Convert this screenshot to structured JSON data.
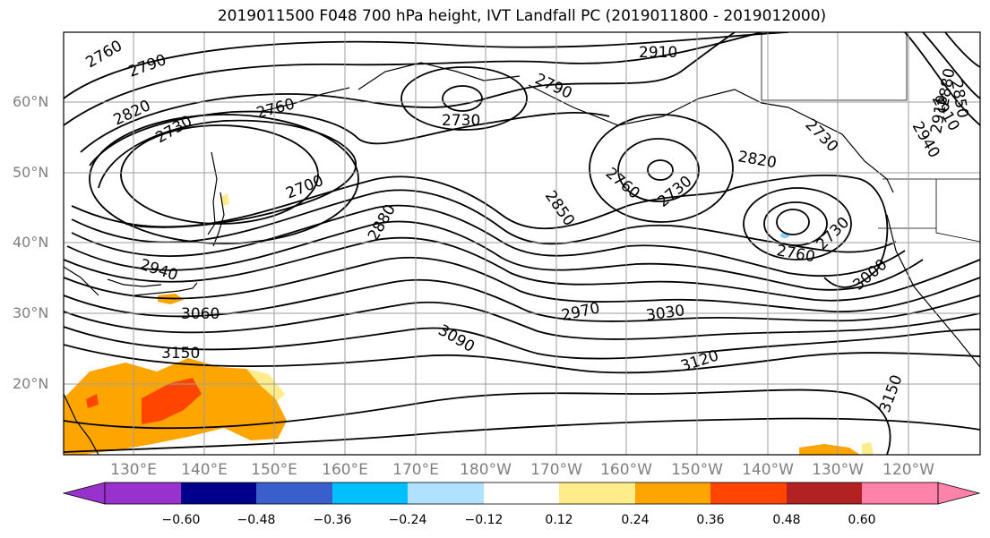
{
  "title": "2019011500 F048 700 hPa height, IVT Landfall PC (2019011800 - 2019012000)",
  "axes": {
    "lat_ticks": [
      "60°N",
      "50°N",
      "40°N",
      "30°N",
      "20°N"
    ],
    "lon_ticks": [
      "130°E",
      "140°E",
      "150°E",
      "160°E",
      "170°E",
      "180°W",
      "170°W",
      "160°W",
      "150°W",
      "140°W",
      "130°W",
      "120°W"
    ],
    "grid": true
  },
  "contours": {
    "variable": "700 hPa height",
    "labels": [
      "2760",
      "2790",
      "2820",
      "2730",
      "2700",
      "2760",
      "2730",
      "2790",
      "2910",
      "2730",
      "2760",
      "2730",
      "2820",
      "2850",
      "2880",
      "2940",
      "3060",
      "3150",
      "2970",
      "3030",
      "3090",
      "3120",
      "3000",
      "2760",
      "2730",
      "3150",
      "2850",
      "2880",
      "2910",
      "2940",
      "2910"
    ]
  },
  "colorbar": {
    "ticks": [
      "−0.60",
      "−0.48",
      "−0.36",
      "−0.24",
      "−0.12",
      "0.12",
      "0.24",
      "0.36",
      "0.48",
      "0.60"
    ],
    "colors": [
      "#9932cc",
      "#00008b",
      "#3a5fcd",
      "#00bfff",
      "#b0e2ff",
      "#ffffff",
      "#ffec8b",
      "#ffa500",
      "#ff4500",
      "#b22222",
      "#ff82ab"
    ]
  },
  "shading": {
    "orange": "#ffa500",
    "red": "#ff4500",
    "yellow": "#ffec8b",
    "light_blue": "#87cefa"
  }
}
